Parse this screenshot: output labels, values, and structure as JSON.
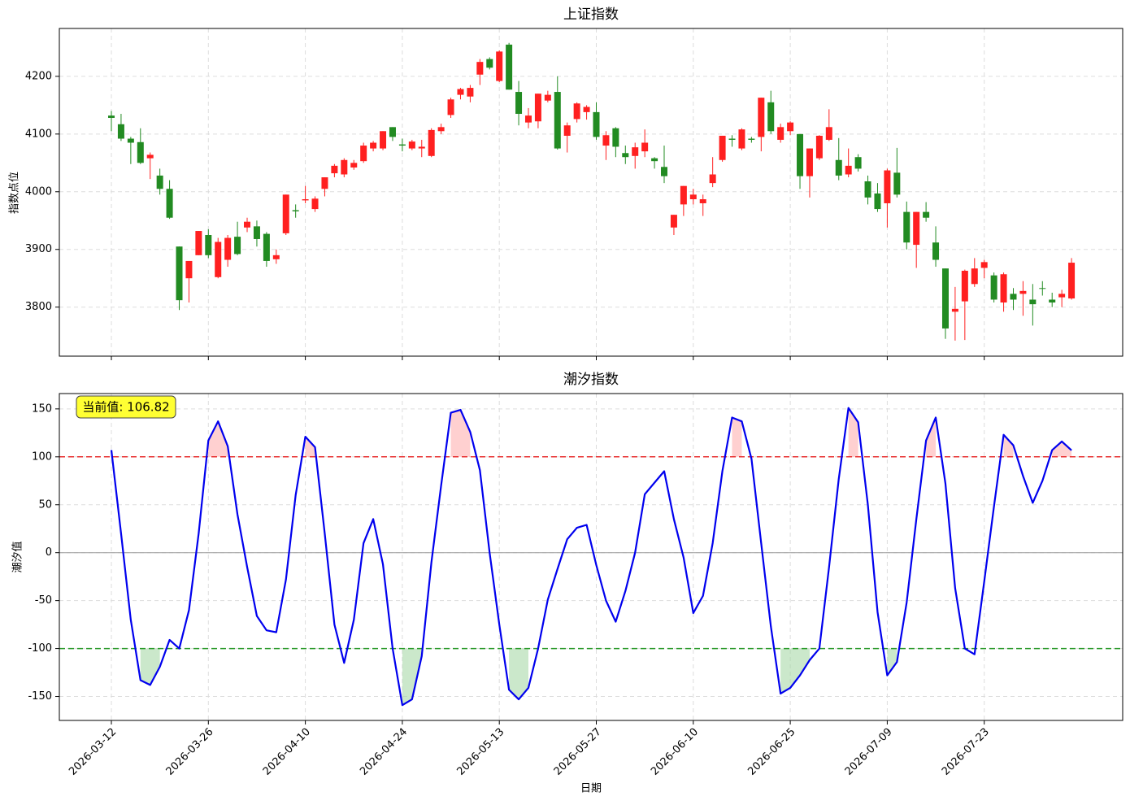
{
  "chart_data": [
    {
      "type": "candlestick",
      "title": "上证指数",
      "ylabel": "指数点位",
      "open": [
        4132,
        4117,
        4092,
        4086,
        4058,
        4028,
        4005,
        3905,
        3850,
        3890,
        3925,
        3852,
        3882,
        3922,
        3938,
        3940,
        3927,
        3883,
        3928,
        3968,
        3985,
        3970,
        4005,
        4032,
        4030,
        4042,
        4053,
        4075,
        4075,
        4112,
        4082,
        4075,
        4075,
        4062,
        4105,
        4133,
        4168,
        4165,
        4203,
        4230,
        4192,
        4255,
        4173,
        4120,
        4122,
        4158,
        4173,
        4097,
        4126,
        4138,
        4138,
        4080,
        4110,
        4067,
        4062,
        4070,
        4058,
        4043,
        3938,
        3978,
        3987,
        3980,
        4015,
        4055,
        4092,
        4075,
        4092,
        4095,
        4155,
        4090,
        4105,
        4100,
        4027,
        4058,
        4090,
        4055,
        4030,
        4060,
        4018,
        3997,
        3980,
        4033,
        3965,
        3908,
        3965,
        3912,
        3867,
        3792,
        3810,
        3840,
        3868,
        3855,
        3808,
        3823,
        3823,
        3813,
        3833,
        3813,
        3817,
        3815
      ],
      "high": [
        4140,
        4135,
        4095,
        4110,
        4068,
        4040,
        4020,
        3905,
        3880,
        3932,
        3935,
        3920,
        3925,
        3948,
        3955,
        3950,
        3930,
        3900,
        3995,
        3978,
        4010,
        3992,
        4025,
        4048,
        4058,
        4055,
        4085,
        4088,
        4105,
        4112,
        4092,
        4090,
        4090,
        4110,
        4118,
        4163,
        4180,
        4185,
        4230,
        4233,
        4245,
        4258,
        4192,
        4145,
        4170,
        4175,
        4200,
        4120,
        4155,
        4150,
        4155,
        4105,
        4112,
        4080,
        4085,
        4108,
        4060,
        4080,
        3960,
        4010,
        4005,
        3995,
        4060,
        4097,
        4098,
        4110,
        4095,
        4163,
        4175,
        4118,
        4122,
        4100,
        4075,
        4098,
        4143,
        4093,
        4075,
        4065,
        4028,
        4015,
        4040,
        4076,
        3983,
        3965,
        3982,
        3940,
        3867,
        3835,
        3865,
        3885,
        3882,
        3860,
        3860,
        3833,
        3845,
        3840,
        3845,
        3825,
        3830,
        3885
      ],
      "low": [
        4105,
        4088,
        4048,
        4048,
        4022,
        3995,
        3953,
        3795,
        3808,
        3890,
        3885,
        3850,
        3870,
        3890,
        3930,
        3905,
        3870,
        3875,
        3925,
        3955,
        3980,
        3965,
        3992,
        4025,
        4025,
        4038,
        4050,
        4070,
        4072,
        4088,
        4070,
        4072,
        4060,
        4060,
        4100,
        4128,
        4160,
        4155,
        4185,
        4212,
        4190,
        4177,
        4115,
        4110,
        4110,
        4155,
        4073,
        4068,
        4120,
        4125,
        4090,
        4055,
        4060,
        4048,
        4040,
        4060,
        4040,
        4015,
        3925,
        3958,
        3978,
        3958,
        4008,
        4052,
        4078,
        4072,
        4085,
        4070,
        4100,
        4085,
        4098,
        4005,
        3990,
        4055,
        4088,
        4020,
        4025,
        4035,
        3978,
        3965,
        3938,
        3990,
        3900,
        3868,
        3948,
        3870,
        3745,
        3742,
        3743,
        3835,
        3850,
        3808,
        3792,
        3795,
        3785,
        3768,
        3820,
        3800,
        3800,
        3813
      ],
      "close": [
        4128,
        4092,
        4085,
        4050,
        4064,
        4005,
        3955,
        3812,
        3880,
        3932,
        3890,
        3913,
        3920,
        3892,
        3948,
        3918,
        3880,
        3890,
        3995,
        3966,
        3987,
        3988,
        4025,
        4045,
        4055,
        4050,
        4080,
        4085,
        4105,
        4095,
        4080,
        4087,
        4078,
        4107,
        4112,
        4160,
        4178,
        4180,
        4225,
        4215,
        4243,
        4177,
        4135,
        4132,
        4170,
        4168,
        4075,
        4115,
        4153,
        4147,
        4095,
        4098,
        4078,
        4060,
        4077,
        4085,
        4053,
        4027,
        3960,
        4010,
        3995,
        3987,
        4030,
        4097,
        4090,
        4108,
        4090,
        4163,
        4105,
        4112,
        4120,
        4027,
        4075,
        4097,
        4112,
        4028,
        4045,
        4040,
        3990,
        3970,
        4037,
        3995,
        3912,
        3965,
        3955,
        3882,
        3763,
        3797,
        3863,
        3867,
        3878,
        3813,
        3857,
        3813,
        3828,
        3805,
        3832,
        3808,
        3823,
        3877
      ],
      "up_color": "#ff2020",
      "down_color": "#228b22",
      "ylim": [
        3715,
        4283
      ],
      "yticks": [
        3800,
        3900,
        4000,
        4100,
        4200
      ],
      "grid": true
    },
    {
      "type": "line",
      "title": "潮汐指数",
      "ylabel": "潮汐值",
      "xlabel": "日期",
      "categories": [
        "2026-03-12",
        null,
        null,
        null,
        null,
        null,
        null,
        null,
        null,
        null,
        "2026-03-26",
        null,
        null,
        null,
        null,
        null,
        null,
        null,
        null,
        null,
        "2026-04-10",
        null,
        null,
        null,
        null,
        null,
        null,
        null,
        null,
        null,
        "2026-04-24",
        null,
        null,
        null,
        null,
        null,
        null,
        null,
        null,
        null,
        "2026-05-13",
        null,
        null,
        null,
        null,
        null,
        null,
        null,
        null,
        null,
        "2026-05-27",
        null,
        null,
        null,
        null,
        null,
        null,
        null,
        null,
        null,
        "2026-06-10",
        null,
        null,
        null,
        null,
        null,
        null,
        null,
        null,
        null,
        "2026-06-25",
        null,
        null,
        null,
        null,
        null,
        null,
        null,
        null,
        null,
        "2026-07-09",
        null,
        null,
        null,
        null,
        null,
        null,
        null,
        null,
        null,
        "2026-07-23",
        null,
        null,
        null,
        null,
        null,
        null,
        null,
        null,
        null
      ],
      "values": [
        107,
        20,
        -70,
        -133,
        -138,
        -119,
        -91,
        -100,
        -60,
        20,
        117,
        137,
        111,
        40,
        -15,
        -66,
        -81,
        -83,
        -28,
        60,
        121,
        110,
        20,
        -75,
        -115,
        -70,
        10,
        35,
        -12,
        -100,
        -159,
        -153,
        -108,
        -10,
        70,
        146,
        149,
        126,
        86,
        0,
        -75,
        -143,
        -153,
        -141,
        -100,
        -49,
        -17,
        14,
        26,
        29,
        -13,
        -50,
        -72,
        -40,
        0,
        61,
        73,
        85,
        35,
        -5,
        -63,
        -45,
        10,
        85,
        141,
        137,
        98,
        10,
        -77,
        -147,
        -141,
        -128,
        -112,
        -100,
        -15,
        77,
        151,
        136,
        50,
        -62,
        -128,
        -114,
        -52,
        35,
        117,
        141,
        72,
        -37,
        -100,
        -106,
        -30,
        48,
        123,
        112,
        80,
        52,
        75,
        107,
        116,
        106.82
      ],
      "color": "#0000ee",
      "thresholds": [
        {
          "value": 100,
          "color": "#e83030",
          "fill": "#ffb0b0"
        },
        {
          "value": -100,
          "color": "#2a9a2a",
          "fill": "#a8d8a8"
        }
      ],
      "annotation": "当前值: 106.82",
      "ylim": [
        -175,
        166
      ],
      "yticks": [
        -150,
        -100,
        -50,
        0,
        50,
        100,
        150
      ],
      "grid": true
    }
  ]
}
